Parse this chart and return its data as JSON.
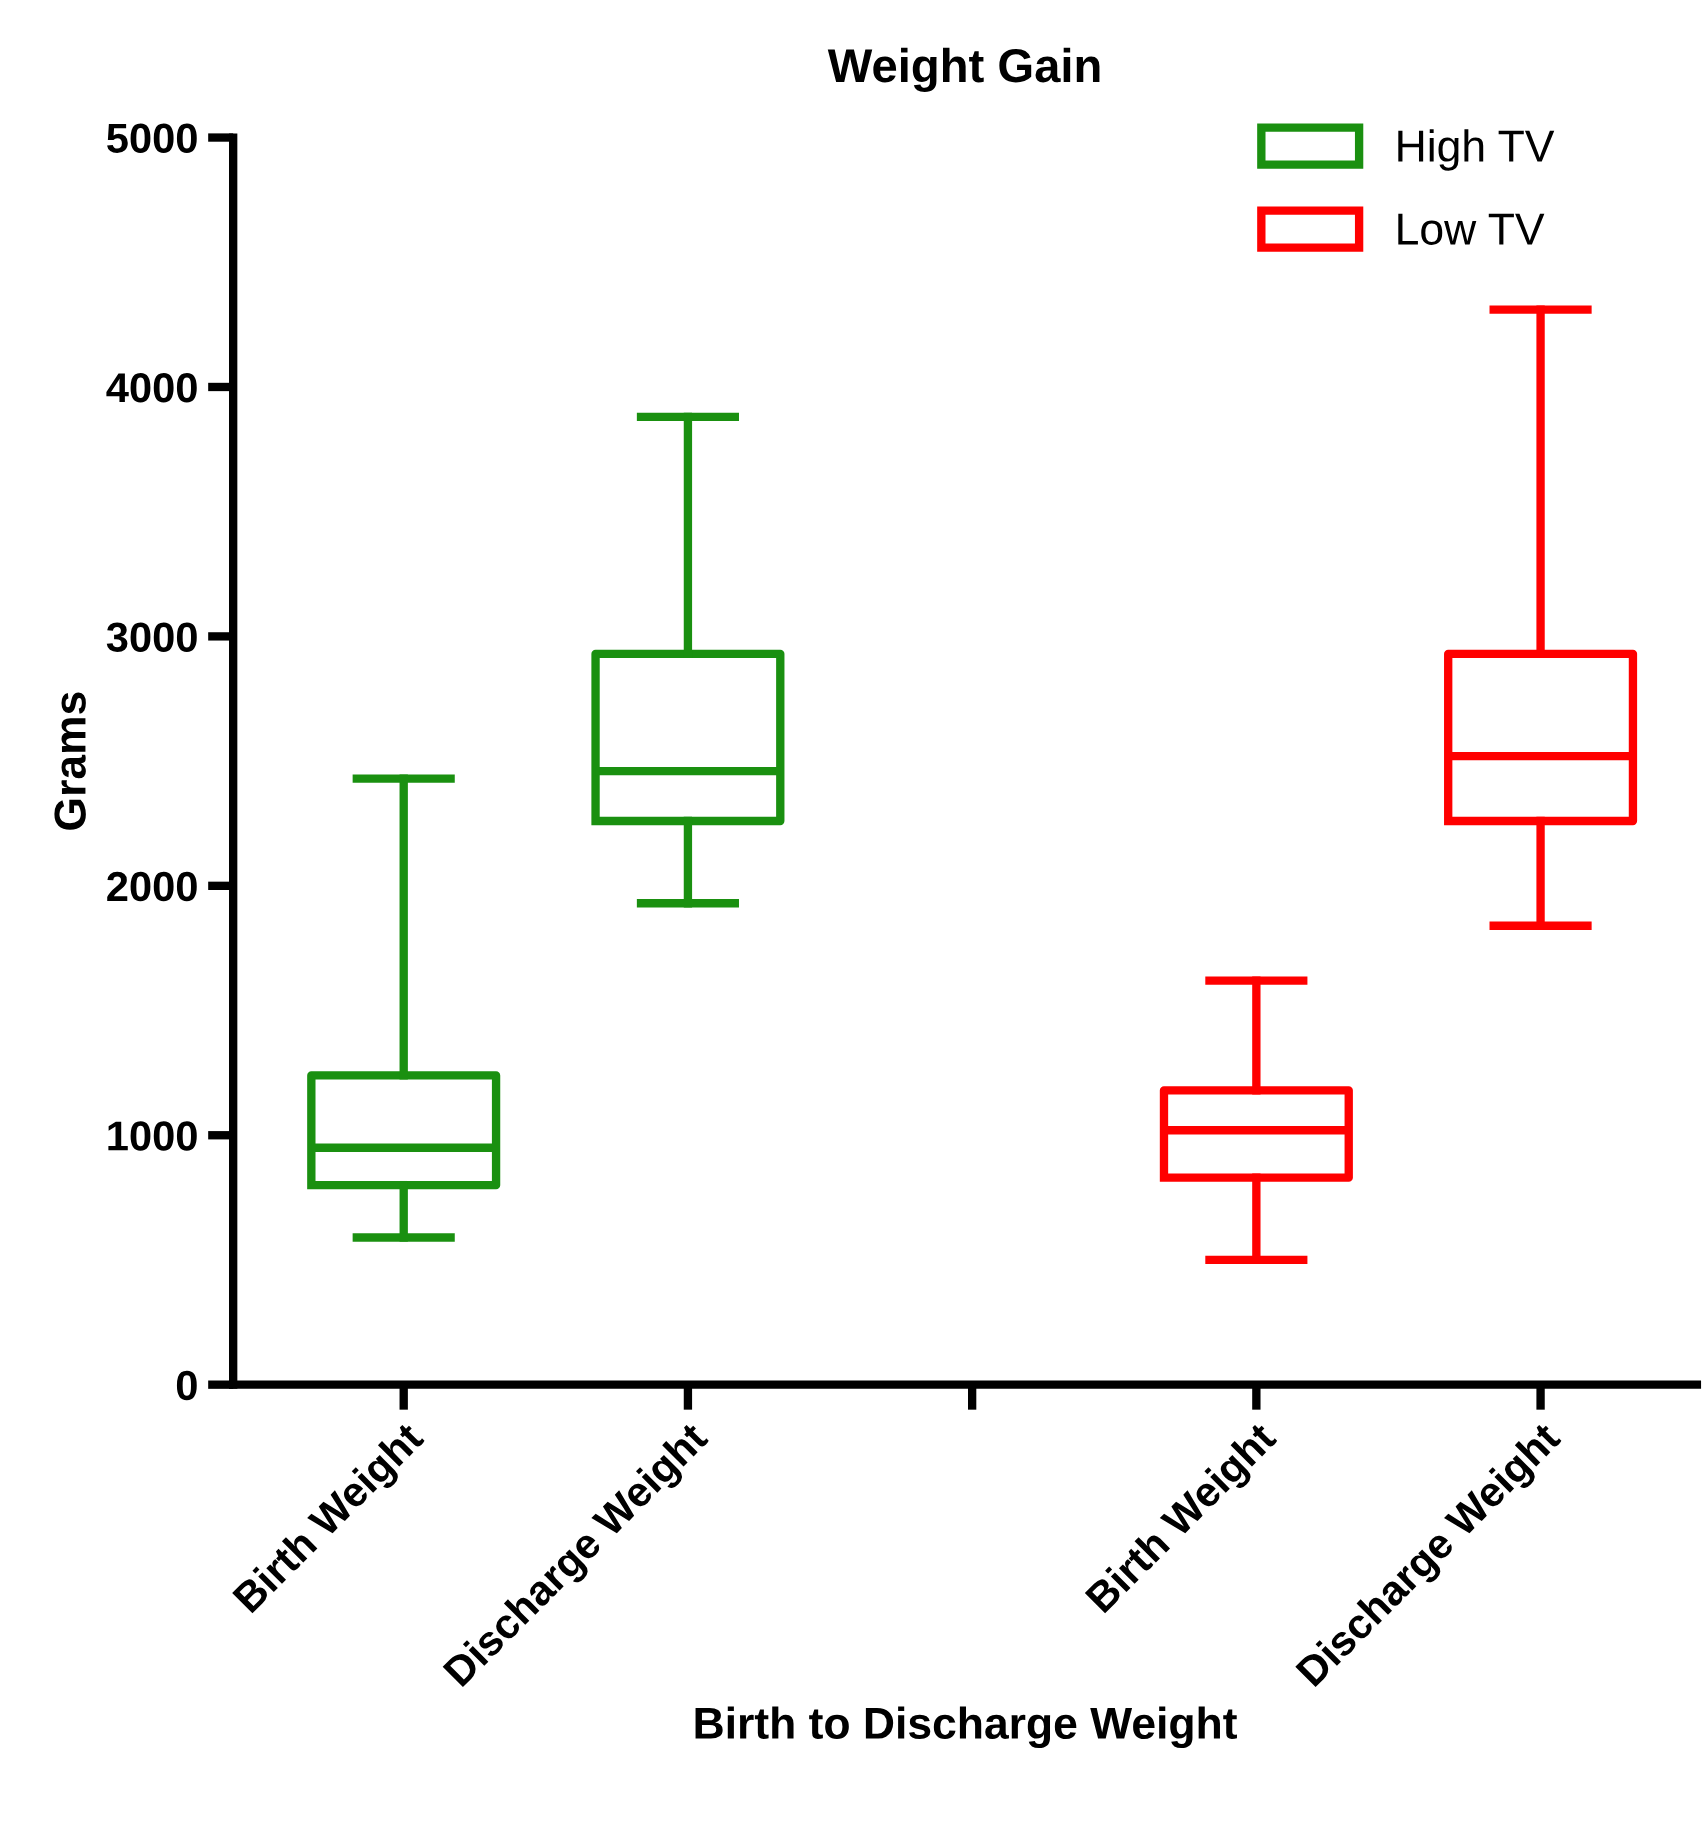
{
  "chart_data": {
    "type": "box",
    "title": "Weight Gain",
    "xlabel": "Birth to Discharge Weight",
    "ylabel": "Grams",
    "categories": [
      "Birth Weight",
      "Discharge Weight",
      null,
      "Birth Weight",
      "Discharge Weight"
    ],
    "series": [
      {
        "name": "High TV",
        "color": "#1a9010",
        "boxes": [
          {
            "low": 590,
            "q1": 800,
            "median": 950,
            "q3": 1240,
            "high": 2430
          },
          {
            "low": 1930,
            "q1": 2260,
            "median": 2460,
            "q3": 2930,
            "high": 3880
          },
          null,
          null,
          null
        ]
      },
      {
        "name": "Low TV",
        "color": "#ff0000",
        "boxes": [
          null,
          null,
          null,
          {
            "low": 500,
            "q1": 830,
            "median": 1020,
            "q3": 1180,
            "high": 1620
          },
          {
            "low": 1840,
            "q1": 2260,
            "median": 2520,
            "q3": 2930,
            "high": 4310
          }
        ]
      }
    ],
    "ylim": [
      0,
      5000
    ],
    "yticks": [
      0,
      1000,
      2000,
      3000,
      4000,
      5000
    ],
    "grid": false,
    "legend": "top right"
  }
}
